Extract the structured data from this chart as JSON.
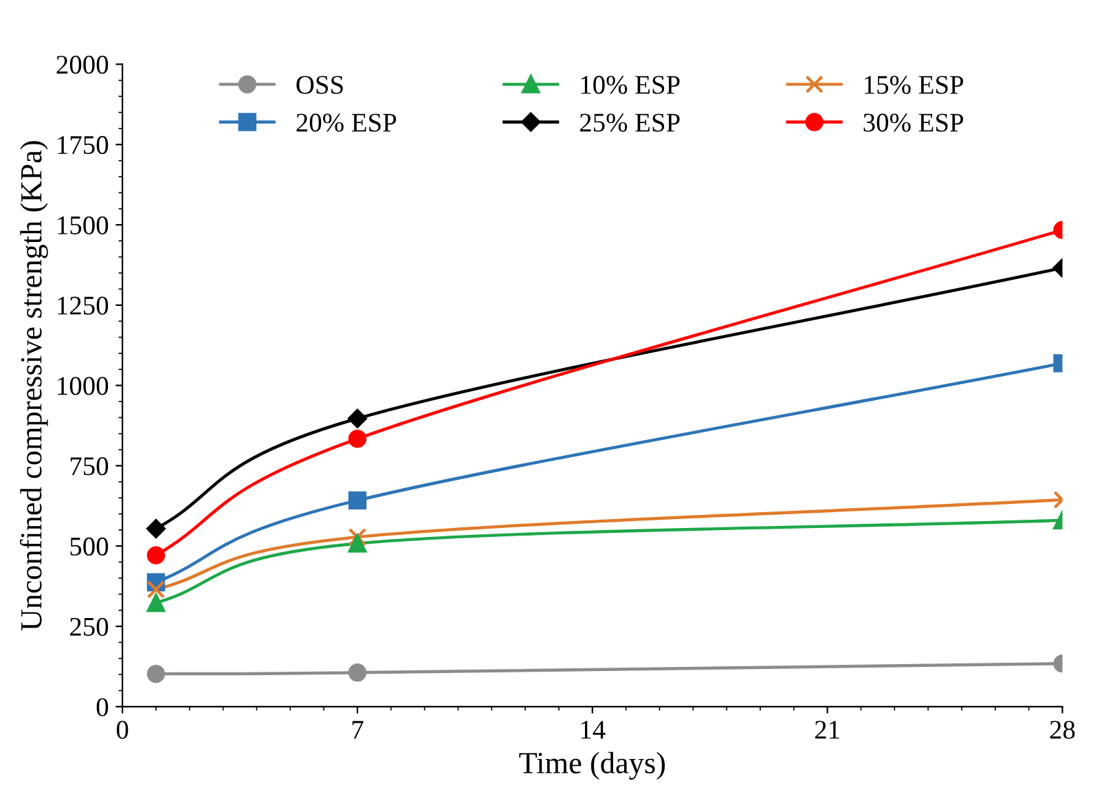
{
  "chart_data": {
    "type": "line",
    "xlabel": "Time (days)",
    "ylabel": "Unconfined compressive strength (KPa)",
    "xlim": [
      0,
      28
    ],
    "xticks": [
      0,
      7,
      14,
      21,
      28
    ],
    "ylim": [
      0,
      2000
    ],
    "yticks": [
      0,
      250,
      500,
      750,
      1000,
      1250,
      1500,
      1750,
      2000
    ],
    "x": [
      1,
      7,
      28
    ],
    "grid": false,
    "legend": "top",
    "line_style": "solid",
    "series": [
      {
        "name": "OSS",
        "color": "#8c8c8c",
        "marker": "circle",
        "values": [
          102,
          106,
          134
        ]
      },
      {
        "name": "10% ESP",
        "color": "#1ea84a",
        "marker": "triangle",
        "values": [
          323,
          508,
          580
        ]
      },
      {
        "name": "15% ESP",
        "color": "#e07b2c",
        "marker": "cross",
        "values": [
          365,
          528,
          644
        ]
      },
      {
        "name": "20% ESP",
        "color": "#2e75b6",
        "marker": "square",
        "values": [
          387,
          642,
          1069
        ]
      },
      {
        "name": "25% ESP",
        "color": "#000000",
        "marker": "diamond",
        "values": [
          554,
          897,
          1366
        ]
      },
      {
        "name": "30% ESP",
        "color": "#ff0000",
        "marker": "circle",
        "values": [
          471,
          834,
          1484
        ]
      }
    ]
  }
}
